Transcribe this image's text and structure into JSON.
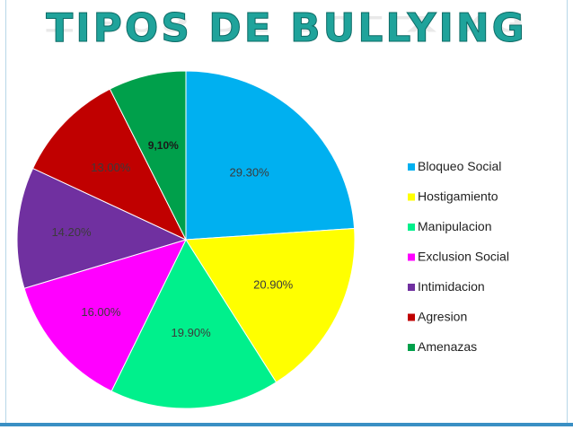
{
  "slide": {
    "title": "TIPOS DE BULLYING"
  },
  "chart_data": {
    "type": "pie",
    "title": "",
    "legend_position": "right",
    "slices": [
      {
        "name": "Bloqueo Social",
        "value": 29.3,
        "label": "29.30%",
        "color": "#00b0f0"
      },
      {
        "name": "Hostigamiento",
        "value": 20.9,
        "label": "20.90%",
        "color": "#ffff00"
      },
      {
        "name": "Manipulacion",
        "value": 19.9,
        "label": "19.90%",
        "color": "#00f08c"
      },
      {
        "name": "Exclusion Social",
        "value": 16.0,
        "label": "16.00%",
        "color": "#ff00ff"
      },
      {
        "name": "Intimidacion",
        "value": 14.2,
        "label": "14.20%",
        "color": "#7030a0"
      },
      {
        "name": "Agresion",
        "value": 13.0,
        "label": "13.00%",
        "color": "#c00000"
      },
      {
        "name": "Amenazas",
        "value": 9.1,
        "label": "9,10%",
        "color": "#00a04b"
      }
    ]
  }
}
